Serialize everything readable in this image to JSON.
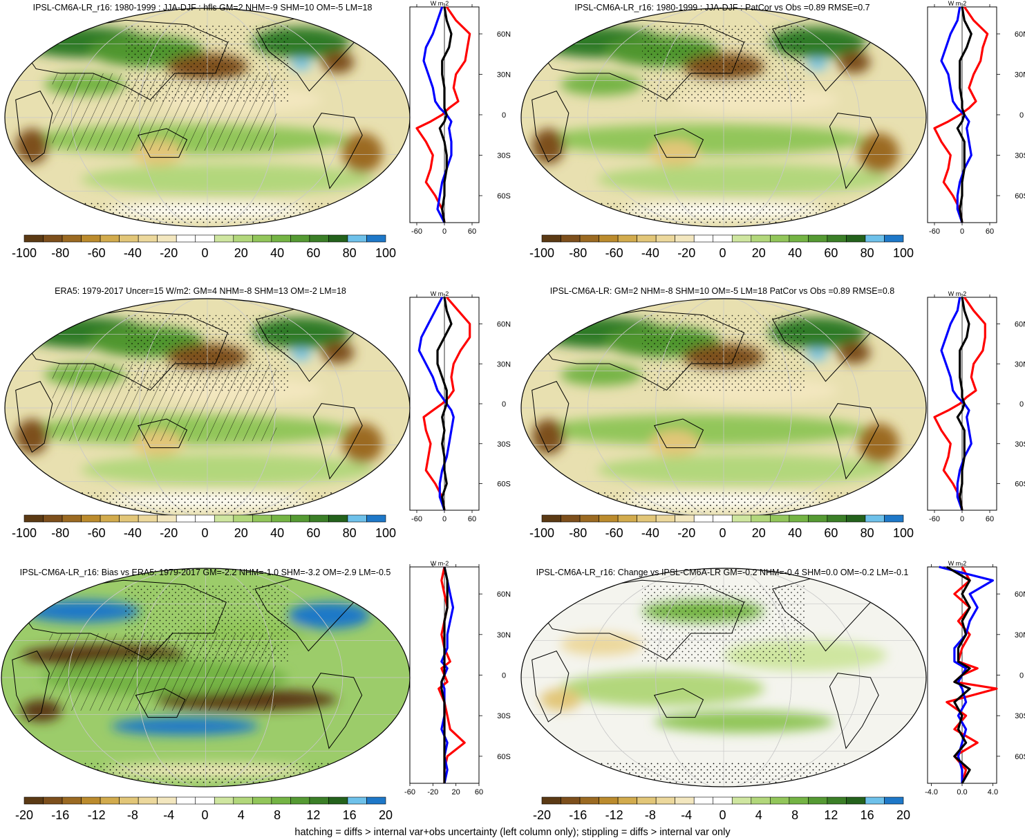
{
  "footer": "hatching = diffs > internal var+obs uncertainty (left column only); stippling = diffs > internal var only",
  "palette_wide": [
    "#5b3a14",
    "#7d4f1c",
    "#9b6a22",
    "#bb8b2d",
    "#d2ab4d",
    "#e2c678",
    "#ecd89c",
    "#f3e7bf",
    "#ffffff",
    "#ffffff",
    "#cfe6a0",
    "#b2d77b",
    "#92c65a",
    "#74b444",
    "#559a33",
    "#3b7f27",
    "#24621c",
    "#6ec1ea",
    "#1e78c8"
  ],
  "palette_narrow": [
    "#5b3a14",
    "#7d4f1c",
    "#9b6a22",
    "#bb8b2d",
    "#d2ab4d",
    "#e2c678",
    "#ecd89c",
    "#f3e7bf",
    "#ffffff",
    "#ffffff",
    "#cfe6a0",
    "#b2d77b",
    "#92c65a",
    "#74b444",
    "#559a33",
    "#3b7f27",
    "#24621c",
    "#6ec1ea",
    "#1e78c8"
  ],
  "series_colors": {
    "red": "#ff0000",
    "blue": "#0000ff",
    "black": "#000000"
  },
  "chart_data": [
    {
      "type": "heatmap",
      "title": "IPSL-CM6A-LR_r16: 1980-1999 : JJA-DJF : hfls GM=2 NHM=-9 SHM=10 OM=-5 LM=18",
      "colorbar_ticks": [
        "-100",
        "-80",
        "-60",
        "-40",
        "-20",
        "0",
        "20",
        "40",
        "60",
        "80",
        "100"
      ],
      "zonal": {
        "units": "W m-2",
        "xticks": [
          "-60",
          "0",
          "60"
        ],
        "xlim": [
          -75,
          75
        ],
        "lat_ticks": [
          "60N",
          "30N",
          "0",
          "30S",
          "60S"
        ],
        "lat": [
          80,
          70,
          60,
          50,
          40,
          30,
          20,
          10,
          5,
          0,
          -5,
          -10,
          -20,
          -30,
          -40,
          -50,
          -60,
          -70,
          -80
        ],
        "series": [
          {
            "color": "red",
            "values": [
              5,
              25,
              55,
              50,
              45,
              25,
              20,
              30,
              10,
              -5,
              -30,
              -60,
              -40,
              -25,
              -30,
              -40,
              -20,
              -5,
              0
            ]
          },
          {
            "color": "blue",
            "values": [
              -5,
              -15,
              -25,
              -40,
              -45,
              -35,
              -25,
              -20,
              -10,
              5,
              15,
              10,
              15,
              15,
              5,
              -5,
              -10,
              -15,
              0
            ]
          },
          {
            "color": "black",
            "values": [
              0,
              5,
              15,
              10,
              -5,
              -5,
              0,
              0,
              0,
              5,
              0,
              -10,
              0,
              5,
              5,
              0,
              0,
              -5,
              0
            ]
          }
        ]
      }
    },
    {
      "type": "heatmap",
      "title": "IPSL-CM6A-LR_r16: 1980-1999 : JJA-DJF : PatCor vs Obs =0.89 RMSE=0.7",
      "colorbar_ticks": [
        "-100",
        "-80",
        "-60",
        "-40",
        "-20",
        "0",
        "20",
        "40",
        "60",
        "80",
        "100"
      ],
      "zonal": {
        "units": "W m-2",
        "xticks": [
          "-60",
          "0",
          "60"
        ],
        "xlim": [
          -75,
          75
        ],
        "lat_ticks": [
          "60N",
          "30N",
          "0",
          "30S",
          "60S"
        ],
        "lat": [
          80,
          70,
          60,
          50,
          40,
          30,
          20,
          10,
          5,
          0,
          -5,
          -10,
          -20,
          -30,
          -40,
          -50,
          -60,
          -70,
          -80
        ],
        "series": [
          {
            "color": "red",
            "values": [
              5,
              25,
              55,
              45,
              40,
              25,
              15,
              30,
              15,
              -5,
              -30,
              -60,
              -45,
              -25,
              -30,
              -40,
              -20,
              -5,
              0
            ]
          },
          {
            "color": "blue",
            "values": [
              -5,
              -10,
              -25,
              -35,
              -45,
              -30,
              -25,
              -20,
              -10,
              5,
              15,
              10,
              15,
              20,
              5,
              -5,
              -10,
              -10,
              0
            ]
          },
          {
            "color": "black",
            "values": [
              0,
              5,
              20,
              10,
              -5,
              -5,
              -5,
              0,
              0,
              5,
              0,
              -10,
              5,
              5,
              5,
              0,
              0,
              -5,
              0
            ]
          }
        ]
      }
    },
    {
      "type": "heatmap",
      "title": "ERA5: 1979-2017 Uncer=15 W/m2: GM=4 NHM=-8 SHM=13 OM=-2 LM=18",
      "colorbar_ticks": [
        "-100",
        "-80",
        "-60",
        "-40",
        "-20",
        "0",
        "20",
        "40",
        "60",
        "80",
        "100"
      ],
      "zonal": {
        "units": "W m-2",
        "xticks": [
          "-60",
          "0",
          "60"
        ],
        "xlim": [
          -75,
          75
        ],
        "lat_ticks": [
          "60N",
          "30N",
          "0",
          "30S",
          "60S"
        ],
        "lat": [
          80,
          70,
          60,
          50,
          40,
          30,
          20,
          10,
          5,
          0,
          -5,
          -10,
          -20,
          -30,
          -40,
          -50,
          -60,
          -70,
          -80
        ],
        "series": [
          {
            "color": "red",
            "values": [
              5,
              30,
              55,
              55,
              35,
              20,
              15,
              20,
              10,
              -5,
              -25,
              -45,
              -40,
              -30,
              -35,
              -40,
              -20,
              -5,
              0
            ]
          },
          {
            "color": "blue",
            "values": [
              -5,
              -20,
              -35,
              -50,
              -55,
              -40,
              -25,
              -15,
              -5,
              5,
              15,
              20,
              15,
              10,
              5,
              -5,
              -10,
              -10,
              0
            ]
          },
          {
            "color": "black",
            "values": [
              0,
              5,
              15,
              0,
              -15,
              -15,
              -5,
              5,
              5,
              5,
              0,
              -5,
              0,
              -5,
              0,
              0,
              5,
              -5,
              0
            ]
          }
        ]
      }
    },
    {
      "type": "heatmap",
      "title": "IPSL-CM6A-LR: GM=2 NHM=-8 SHM=10 OM=-5 LM=18 PatCor vs Obs =0.89 RMSE=0.8",
      "colorbar_ticks": [
        "-100",
        "-80",
        "-60",
        "-40",
        "-20",
        "0",
        "20",
        "40",
        "60",
        "80",
        "100"
      ],
      "zonal": {
        "units": "W m-2",
        "xticks": [
          "-60",
          "0",
          "60"
        ],
        "xlim": [
          -75,
          75
        ],
        "lat_ticks": [
          "60N",
          "30N",
          "0",
          "30S",
          "60S"
        ],
        "lat": [
          80,
          70,
          60,
          50,
          40,
          30,
          20,
          10,
          5,
          0,
          -5,
          -10,
          -20,
          -30,
          -40,
          -50,
          -60,
          -70,
          -80
        ],
        "series": [
          {
            "color": "red",
            "values": [
              5,
              25,
              50,
              50,
              45,
              25,
              20,
              30,
              10,
              -5,
              -30,
              -60,
              -45,
              -25,
              -30,
              -40,
              -20,
              -5,
              0
            ]
          },
          {
            "color": "blue",
            "values": [
              -5,
              -10,
              -25,
              -35,
              -45,
              -35,
              -25,
              -20,
              -10,
              5,
              15,
              10,
              15,
              20,
              5,
              -5,
              -10,
              -10,
              0
            ]
          },
          {
            "color": "black",
            "values": [
              0,
              5,
              15,
              10,
              -5,
              -5,
              -5,
              0,
              0,
              5,
              0,
              -10,
              5,
              5,
              5,
              0,
              0,
              -5,
              0
            ]
          }
        ]
      }
    },
    {
      "type": "heatmap",
      "title": "IPSL-CM6A-LR_r16: Bias vs ERA5: 1979-2017 GM=-2.2 NHM=-1.0 SHM=-3.2 OM=-2.9 LM=-0.5",
      "colorbar_ticks": [
        "-20",
        "-16",
        "-12",
        "-8",
        "-4",
        "0",
        "4",
        "8",
        "12",
        "16",
        "20"
      ],
      "zonal": {
        "units": "W m-2",
        "xticks": [
          "-60",
          "-20",
          "20",
          "60"
        ],
        "xlim": [
          -60,
          60
        ],
        "lat_ticks": [
          "60N",
          "30N",
          "0",
          "30S",
          "60S"
        ],
        "lat": [
          80,
          70,
          60,
          50,
          40,
          30,
          20,
          10,
          5,
          0,
          -5,
          -10,
          -20,
          -30,
          -40,
          -50,
          -60,
          -70,
          -80
        ],
        "series": [
          {
            "color": "red",
            "values": [
              0,
              -5,
              0,
              5,
              0,
              -5,
              0,
              10,
              -5,
              0,
              5,
              -10,
              0,
              5,
              10,
              35,
              5,
              0,
              0
            ]
          },
          {
            "color": "blue",
            "values": [
              0,
              5,
              10,
              15,
              10,
              5,
              5,
              -5,
              5,
              0,
              -5,
              0,
              0,
              0,
              -5,
              5,
              0,
              5,
              0
            ]
          },
          {
            "color": "black",
            "values": [
              0,
              5,
              5,
              5,
              0,
              0,
              0,
              0,
              0,
              0,
              -5,
              -5,
              0,
              0,
              0,
              0,
              0,
              0,
              0
            ]
          }
        ]
      }
    },
    {
      "type": "heatmap",
      "title": "IPSL-CM6A-LR_r16: Change vs IPSL-CM6A-LR GM=-0.2 NHM=-0.4 SHM=0.0 OM=-0.2 LM=-0.1",
      "colorbar_ticks": [
        "-20",
        "-16",
        "-12",
        "-8",
        "-4",
        "0",
        "4",
        "8",
        "12",
        "16",
        "20"
      ],
      "zonal": {
        "units": "W m-2",
        "xticks": [
          "-4.0",
          "0.0",
          "4.0"
        ],
        "xlim": [
          -4.5,
          4.5
        ],
        "lat_ticks": [
          "60N",
          "30N",
          "0",
          "30S",
          "60S"
        ],
        "lat": [
          80,
          70,
          60,
          50,
          40,
          30,
          20,
          10,
          5,
          0,
          -5,
          -10,
          -20,
          -30,
          -40,
          -50,
          -60,
          -70,
          -80
        ],
        "series": [
          {
            "color": "red",
            "values": [
              0,
              1,
              -1,
              1,
              -0.5,
              1,
              0,
              -0.5,
              2,
              0,
              -1,
              4.5,
              -2,
              0.5,
              -1,
              2,
              -1,
              0.5,
              0
            ]
          },
          {
            "color": "blue",
            "values": [
              -3,
              4,
              1,
              2,
              1,
              0.5,
              -1,
              -1,
              0.5,
              0,
              -0.5,
              0,
              0.5,
              -0.5,
              0.5,
              0,
              -0.5,
              0,
              0
            ]
          },
          {
            "color": "black",
            "values": [
              -2,
              1,
              0,
              1,
              0,
              0.5,
              -0.5,
              -0.5,
              1,
              0,
              -1,
              1,
              -1,
              0,
              -0.5,
              0.5,
              -1,
              1,
              0
            ]
          }
        ]
      }
    }
  ]
}
